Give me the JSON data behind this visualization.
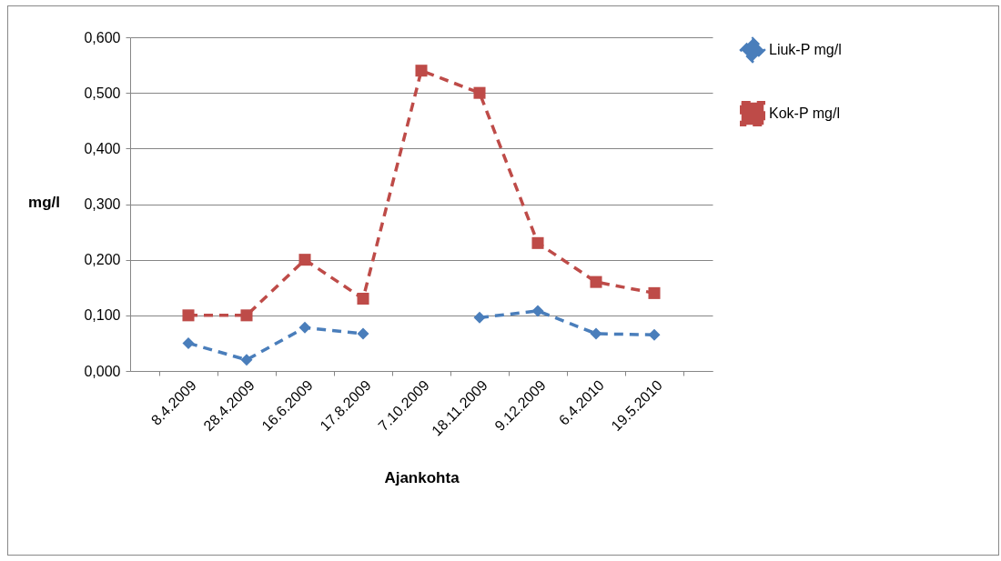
{
  "chart_data": {
    "type": "line",
    "xlabel": "Ajankohta",
    "ylabel": "mg/l",
    "categories": [
      "8.4.2009",
      "28.4.2009",
      "16.6.2009",
      "17.8.2009",
      "7.10.2009",
      "18.11.2009",
      "9.12.2009",
      "6.4.2010",
      "19.5.2010"
    ],
    "series": [
      {
        "name": "Liuk-P mg/l",
        "color": "#4a7ebb",
        "marker": "diamond",
        "values": [
          0.05,
          0.02,
          0.078,
          0.067,
          null,
          0.096,
          0.108,
          0.067,
          0.065
        ]
      },
      {
        "name": "Kok-P mg/l",
        "color": "#be4b48",
        "marker": "square",
        "values": [
          0.1,
          0.1,
          0.2,
          0.13,
          0.54,
          0.5,
          0.23,
          0.16,
          0.14
        ]
      }
    ],
    "ylim": [
      0,
      0.6
    ],
    "yticks": [
      {
        "value": 0,
        "label": "0,000"
      },
      {
        "value": 0.1,
        "label": "0,100"
      },
      {
        "value": 0.2,
        "label": "0,200"
      },
      {
        "value": 0.3,
        "label": "0,300"
      },
      {
        "value": 0.4,
        "label": "0,400"
      },
      {
        "value": 0.5,
        "label": "0,500"
      },
      {
        "value": 0.6,
        "label": "0,600"
      }
    ],
    "grid": "y",
    "legend": "right",
    "line_style": "dashed"
  }
}
